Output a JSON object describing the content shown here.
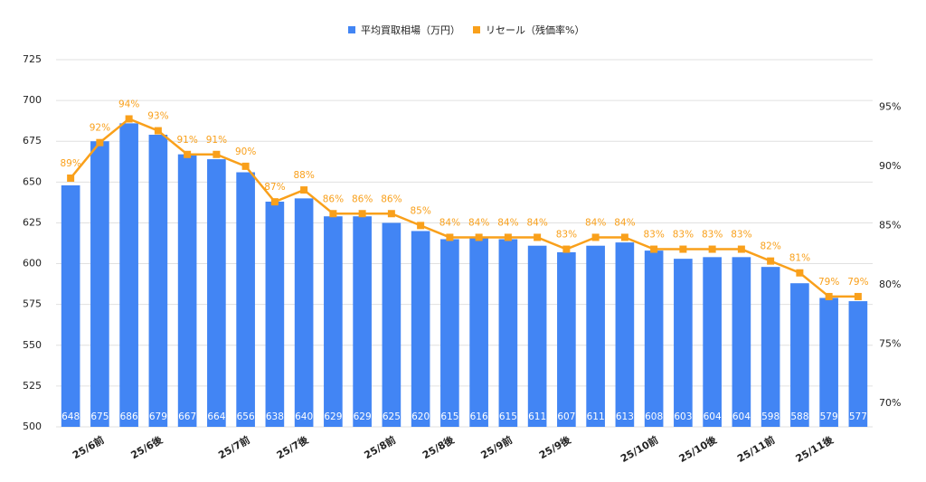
{
  "chart_data": {
    "type": "bar-line",
    "categories": [
      null,
      "25/6前",
      null,
      "25/6後",
      null,
      null,
      "25/7前",
      null,
      "25/7後",
      null,
      null,
      "25/8前",
      null,
      "25/8後",
      null,
      "25/9前",
      null,
      "25/9後",
      null,
      null,
      "25/10前",
      null,
      "25/10後",
      null,
      "25/11前",
      null,
      "25/11後",
      null
    ],
    "series": [
      {
        "name": "平均買取相場（万円）",
        "color": "#4285f4",
        "type": "bar",
        "values": [
          648,
          675,
          686,
          679,
          667,
          664,
          656,
          638,
          640,
          629,
          629,
          625,
          620,
          615,
          616,
          615,
          611,
          607,
          611,
          613,
          608,
          603,
          604,
          604,
          598,
          588,
          579,
          577
        ]
      },
      {
        "name": "リセール（残価率%）",
        "color": "#f9a01b",
        "type": "line",
        "axis": "y2",
        "values": [
          89,
          92,
          94,
          93,
          91,
          91,
          90,
          87,
          88,
          86,
          86,
          86,
          85,
          84,
          84,
          84,
          84,
          83,
          84,
          84,
          83,
          83,
          83,
          83,
          82,
          81,
          79,
          79
        ],
        "value_labels": [
          "89%",
          "92%",
          "94%",
          "93%",
          "91%",
          "91%",
          "90%",
          "87%",
          "88%",
          "86%",
          "86%",
          "86%",
          "85%",
          "84%",
          "84%",
          "84%",
          "84%",
          "83%",
          "84%",
          "84%",
          "83%",
          "83%",
          "83%",
          "83%",
          "82%",
          "81%",
          "79%",
          "79%"
        ]
      }
    ],
    "ylim": [
      500,
      725
    ],
    "yticks": [
      500,
      525,
      550,
      575,
      600,
      625,
      650,
      675,
      700,
      725
    ],
    "y2lim": [
      68,
      99
    ],
    "y2ticks": [
      {
        "value": 70,
        "label": "70%"
      },
      {
        "value": 75,
        "label": "75%"
      },
      {
        "value": 80,
        "label": "80%"
      },
      {
        "value": 85,
        "label": "85%"
      },
      {
        "value": 90,
        "label": "90%"
      },
      {
        "value": 95,
        "label": "95%"
      }
    ],
    "grid": true,
    "legend": "top"
  }
}
